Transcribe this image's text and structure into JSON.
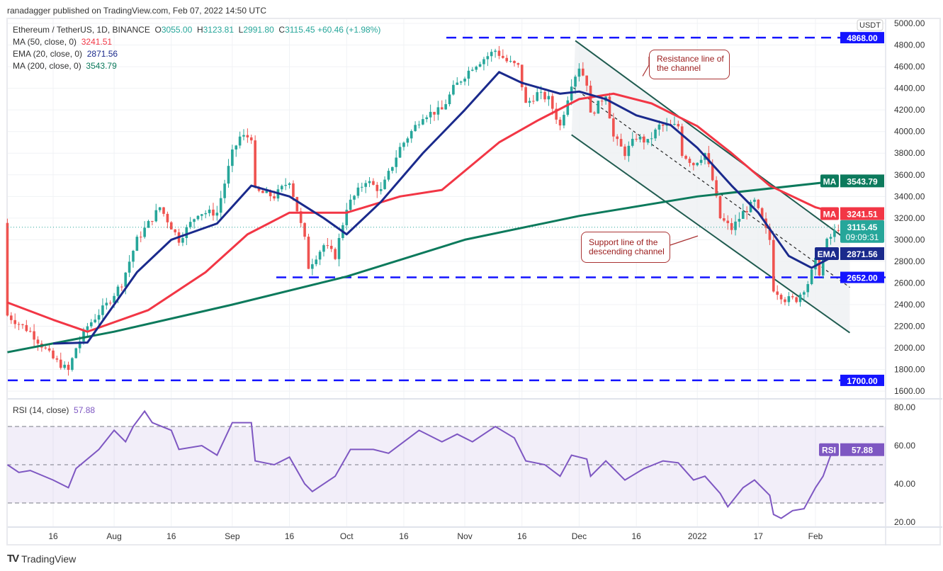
{
  "header": {
    "published": "ranadagger published on TradingView.com, Feb 07, 2022 14:50 UTC"
  },
  "legend": {
    "symbol": "Ethereum / TetherUS, 1D, BINANCE",
    "o_label": "O",
    "o": "3055.00",
    "h_label": "H",
    "h": "3123.81",
    "l_label": "L",
    "l": "2991.80",
    "c_label": "C",
    "c": "3115.45",
    "change": "+60.46 (+1.98%)",
    "ma50_label": "MA (50, close, 0)",
    "ma50": "3241.51",
    "ema20_label": "EMA (20, close, 0)",
    "ema20": "2871.56",
    "ma200_label": "MA (200, close, 0)",
    "ma200": "3543.79",
    "rsi_label": "RSI (14, close)",
    "rsi": "57.88"
  },
  "colors": {
    "up": "#26a69a",
    "down": "#ef5350",
    "ma50": "#f23645",
    "ema20": "#1a2a8c",
    "ma200": "#0c7a5c",
    "rsi": "#7e57c2",
    "level": "#1414ff",
    "channel": "#1f5b4f"
  },
  "axis": {
    "currency": "USDT",
    "countdown": "09:09:31",
    "ma_tag": "MA",
    "ema_tag": "EMA",
    "rsi_tag": "RSI"
  },
  "annotations": [
    {
      "text1": "Resistance line of",
      "text2": "the channel"
    },
    {
      "text1": "Support line of the",
      "text2": "descending channel"
    }
  ],
  "footer": {
    "brand": "TradingView"
  },
  "chart_data": {
    "type": "candlestick",
    "price_axis": {
      "ylim": [
        1600,
        5000
      ],
      "ticks": [
        "1600.00",
        "1800.00",
        "2000.00",
        "2200.00",
        "2400.00",
        "2600.00",
        "2800.00",
        "3000.00",
        "3200.00",
        "3400.00",
        "3600.00",
        "3800.00",
        "4000.00",
        "4200.00",
        "4400.00",
        "4600.00",
        "4800.00",
        "5000.00"
      ]
    },
    "time_ticks": [
      [
        "2021-07-16",
        "16"
      ],
      [
        "2021-08-01",
        "Aug"
      ],
      [
        "2021-08-16",
        "16"
      ],
      [
        "2021-09-01",
        "Sep"
      ],
      [
        "2021-09-16",
        "16"
      ],
      [
        "2021-10-01",
        "Oct"
      ],
      [
        "2021-10-16",
        "16"
      ],
      [
        "2021-11-01",
        "Nov"
      ],
      [
        "2021-11-16",
        "16"
      ],
      [
        "2021-12-01",
        "Dec"
      ],
      [
        "2021-12-16",
        "16"
      ],
      [
        "2022-01-01",
        "2022"
      ],
      [
        "2022-01-17",
        "17"
      ],
      [
        "2022-02-01",
        "Feb"
      ]
    ],
    "xlim": [
      "2021-07-03",
      "2022-02-19"
    ],
    "close_path": [
      [
        "2021-07-04",
        2300
      ],
      [
        "2021-07-10",
        2150
      ],
      [
        "2021-07-16",
        1900
      ],
      [
        "2021-07-20",
        1790
      ],
      [
        "2021-07-22",
        2000
      ],
      [
        "2021-07-25",
        2200
      ],
      [
        "2021-07-30",
        2400
      ],
      [
        "2021-08-03",
        2600
      ],
      [
        "2021-08-07",
        3000
      ],
      [
        "2021-08-13",
        3300
      ],
      [
        "2021-08-18",
        3000
      ],
      [
        "2021-08-23",
        3250
      ],
      [
        "2021-08-28",
        3250
      ],
      [
        "2021-09-01",
        3800
      ],
      [
        "2021-09-03",
        3950
      ],
      [
        "2021-09-06",
        3950
      ],
      [
        "2021-09-07",
        3450
      ],
      [
        "2021-09-12",
        3400
      ],
      [
        "2021-09-16",
        3550
      ],
      [
        "2021-09-20",
        3000
      ],
      [
        "2021-09-21",
        2750
      ],
      [
        "2021-09-25",
        2950
      ],
      [
        "2021-09-28",
        2850
      ],
      [
        "2021-10-01",
        3300
      ],
      [
        "2021-10-06",
        3550
      ],
      [
        "2021-10-10",
        3450
      ],
      [
        "2021-10-15",
        3850
      ],
      [
        "2021-10-21",
        4150
      ],
      [
        "2021-10-26",
        4200
      ],
      [
        "2021-10-29",
        4400
      ],
      [
        "2021-11-03",
        4600
      ],
      [
        "2021-11-09",
        4750
      ],
      [
        "2021-11-12",
        4650
      ],
      [
        "2021-11-15",
        4600
      ],
      [
        "2021-11-17",
        4250
      ],
      [
        "2021-11-20",
        4350
      ],
      [
        "2021-11-23",
        4300
      ],
      [
        "2021-11-26",
        4050
      ],
      [
        "2021-11-29",
        4450
      ],
      [
        "2021-12-01",
        4600
      ],
      [
        "2021-12-03",
        4450
      ],
      [
        "2021-12-04",
        4150
      ],
      [
        "2021-12-08",
        4350
      ],
      [
        "2021-12-10",
        3950
      ],
      [
        "2021-12-13",
        3800
      ],
      [
        "2021-12-16",
        3950
      ],
      [
        "2021-12-19",
        3900
      ],
      [
        "2021-12-22",
        4050
      ],
      [
        "2021-12-27",
        4050
      ],
      [
        "2021-12-28",
        3800
      ],
      [
        "2021-12-31",
        3700
      ],
      [
        "2022-01-03",
        3800
      ],
      [
        "2022-01-05",
        3550
      ],
      [
        "2022-01-07",
        3200
      ],
      [
        "2022-01-10",
        3100
      ],
      [
        "2022-01-13",
        3250
      ],
      [
        "2022-01-16",
        3350
      ],
      [
        "2022-01-20",
        3000
      ],
      [
        "2022-01-21",
        2550
      ],
      [
        "2022-01-24",
        2450
      ],
      [
        "2022-01-27",
        2450
      ],
      [
        "2022-01-30",
        2600
      ],
      [
        "2022-02-01",
        2800
      ],
      [
        "2022-02-02",
        2700
      ],
      [
        "2022-02-04",
        2980
      ],
      [
        "2022-02-07",
        3115.45
      ]
    ],
    "ema20": [
      [
        "2021-07-16",
        2040
      ],
      [
        "2021-07-25",
        2050
      ],
      [
        "2021-08-07",
        2700
      ],
      [
        "2021-08-16",
        3000
      ],
      [
        "2021-08-28",
        3150
      ],
      [
        "2021-09-06",
        3500
      ],
      [
        "2021-09-16",
        3400
      ],
      [
        "2021-09-25",
        3200
      ],
      [
        "2021-10-01",
        3050
      ],
      [
        "2021-10-10",
        3350
      ],
      [
        "2021-10-21",
        3800
      ],
      [
        "2021-11-01",
        4200
      ],
      [
        "2021-11-10",
        4550
      ],
      [
        "2021-11-16",
        4450
      ],
      [
        "2021-11-26",
        4350
      ],
      [
        "2021-12-01",
        4370
      ],
      [
        "2021-12-08",
        4300
      ],
      [
        "2021-12-16",
        4150
      ],
      [
        "2021-12-25",
        4060
      ],
      [
        "2022-01-01",
        3850
      ],
      [
        "2022-01-10",
        3500
      ],
      [
        "2022-01-17",
        3250
      ],
      [
        "2022-01-25",
        2850
      ],
      [
        "2022-01-31",
        2740
      ],
      [
        "2022-02-07",
        2871.56
      ]
    ],
    "ma50": [
      [
        "2021-07-04",
        2420
      ],
      [
        "2021-07-16",
        2260
      ],
      [
        "2021-07-25",
        2150
      ],
      [
        "2021-08-10",
        2350
      ],
      [
        "2021-08-25",
        2700
      ],
      [
        "2021-09-05",
        3050
      ],
      [
        "2021-09-16",
        3250
      ],
      [
        "2021-10-01",
        3250
      ],
      [
        "2021-10-15",
        3400
      ],
      [
        "2021-10-26",
        3460
      ],
      [
        "2021-11-10",
        3900
      ],
      [
        "2021-11-20",
        4100
      ],
      [
        "2021-12-01",
        4300
      ],
      [
        "2021-12-10",
        4350
      ],
      [
        "2021-12-20",
        4260
      ],
      [
        "2022-01-01",
        4050
      ],
      [
        "2022-01-10",
        3800
      ],
      [
        "2022-01-20",
        3500
      ],
      [
        "2022-02-01",
        3300
      ],
      [
        "2022-02-07",
        3241.51
      ]
    ],
    "ma200": [
      [
        "2021-07-04",
        1960
      ],
      [
        "2021-08-01",
        2150
      ],
      [
        "2021-09-01",
        2400
      ],
      [
        "2021-10-01",
        2660
      ],
      [
        "2021-11-01",
        3000
      ],
      [
        "2021-12-01",
        3220
      ],
      [
        "2022-01-01",
        3400
      ],
      [
        "2022-02-07",
        3543.79
      ]
    ],
    "levels": [
      4868.0,
      2652.0,
      1700.0
    ],
    "channel": {
      "resistance": [
        [
          "2021-11-30",
          4840
        ],
        [
          "2022-02-10",
          2980
        ]
      ],
      "support": [
        [
          "2021-11-29",
          3970
        ],
        [
          "2022-02-10",
          2140
        ]
      ]
    },
    "rsi": {
      "ylim": [
        18,
        84
      ],
      "ticks": [
        "20.00",
        "40.00",
        "60.00",
        "80.00"
      ],
      "bands": [
        30,
        50,
        70
      ],
      "values": [
        [
          "2021-07-04",
          50
        ],
        [
          "2021-07-07",
          46
        ],
        [
          "2021-07-10",
          47
        ],
        [
          "2021-07-16",
          42
        ],
        [
          "2021-07-20",
          38
        ],
        [
          "2021-07-22",
          48
        ],
        [
          "2021-07-28",
          58
        ],
        [
          "2021-08-01",
          68
        ],
        [
          "2021-08-04",
          62
        ],
        [
          "2021-08-06",
          70
        ],
        [
          "2021-08-09",
          78
        ],
        [
          "2021-08-11",
          72
        ],
        [
          "2021-08-16",
          68
        ],
        [
          "2021-08-18",
          58
        ],
        [
          "2021-08-24",
          60
        ],
        [
          "2021-08-28",
          55
        ],
        [
          "2021-09-01",
          72
        ],
        [
          "2021-09-06",
          72
        ],
        [
          "2021-09-07",
          52
        ],
        [
          "2021-09-12",
          50
        ],
        [
          "2021-09-16",
          54
        ],
        [
          "2021-09-20",
          40
        ],
        [
          "2021-09-22",
          36
        ],
        [
          "2021-09-28",
          44
        ],
        [
          "2021-10-02",
          58
        ],
        [
          "2021-10-08",
          58
        ],
        [
          "2021-10-12",
          56
        ],
        [
          "2021-10-20",
          68
        ],
        [
          "2021-10-26",
          62
        ],
        [
          "2021-10-30",
          66
        ],
        [
          "2021-11-03",
          62
        ],
        [
          "2021-11-09",
          70
        ],
        [
          "2021-11-14",
          64
        ],
        [
          "2021-11-17",
          52
        ],
        [
          "2021-11-22",
          50
        ],
        [
          "2021-11-26",
          44
        ],
        [
          "2021-11-29",
          55
        ],
        [
          "2021-12-03",
          53
        ],
        [
          "2021-12-04",
          44
        ],
        [
          "2021-12-08",
          52
        ],
        [
          "2021-12-13",
          42
        ],
        [
          "2021-12-18",
          48
        ],
        [
          "2021-12-23",
          52
        ],
        [
          "2021-12-27",
          51
        ],
        [
          "2021-12-31",
          42
        ],
        [
          "2022-01-03",
          44
        ],
        [
          "2022-01-07",
          35
        ],
        [
          "2022-01-09",
          28
        ],
        [
          "2022-01-13",
          38
        ],
        [
          "2022-01-16",
          42
        ],
        [
          "2022-01-20",
          34
        ],
        [
          "2022-01-21",
          24
        ],
        [
          "2022-01-23",
          22
        ],
        [
          "2022-01-26",
          26
        ],
        [
          "2022-01-29",
          27
        ],
        [
          "2022-02-01",
          38
        ],
        [
          "2022-02-03",
          44
        ],
        [
          "2022-02-05",
          55
        ],
        [
          "2022-02-07",
          57.88
        ]
      ]
    }
  }
}
